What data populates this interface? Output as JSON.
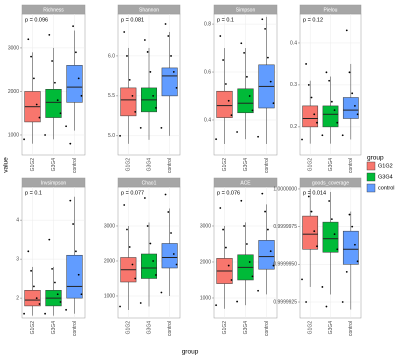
{
  "chart_data": {
    "type": "box",
    "x_label": "group",
    "y_label": "value",
    "categories": [
      "G1G2",
      "G3G4",
      "control"
    ],
    "legend": {
      "title": "group",
      "position": "right"
    },
    "series": [
      {
        "name": "G1G2",
        "color": "#f8766d"
      },
      {
        "name": "G3G4",
        "color": "#00ba38"
      },
      {
        "name": "control",
        "color": "#619cff"
      }
    ],
    "grid": true,
    "panels": [
      {
        "title": "Richness",
        "annotation": "p = 0.096",
        "ylim": [
          540,
          3780
        ],
        "yticks": [
          1000,
          2000,
          3000
        ],
        "boxes": [
          {
            "min": 800,
            "q1": 1300,
            "median": 1650,
            "q3": 2000,
            "max": 2900,
            "points": [
              900,
              1400,
              1700,
              2300,
              2800,
              3200
            ]
          },
          {
            "min": 900,
            "q1": 1400,
            "median": 1750,
            "q3": 2050,
            "max": 3000,
            "points": [
              1000,
              1500,
              1800,
              2200,
              2700,
              3300
            ]
          },
          {
            "min": 1100,
            "q1": 1750,
            "median": 2100,
            "q3": 2600,
            "max": 3400,
            "points": [
              1200,
              1900,
              2300,
              2900,
              3500,
              800
            ]
          }
        ]
      },
      {
        "title": "Shannon",
        "annotation": "p = 0.081",
        "ylim": [
          4.76,
          6.525
        ],
        "yticks": [
          {
            "value": 5,
            "label": "5.0"
          },
          5.5,
          {
            "value": 6,
            "label": "6.0"
          }
        ],
        "boxes": [
          {
            "min": 4.9,
            "q1": 5.25,
            "median": 5.45,
            "q3": 5.6,
            "max": 6.1,
            "points": [
              5.0,
              5.3,
              5.5,
              5.7,
              6.0,
              6.3
            ]
          },
          {
            "min": 4.95,
            "q1": 5.3,
            "median": 5.45,
            "q3": 5.6,
            "max": 6.1,
            "points": [
              5.1,
              5.35,
              5.5,
              5.8,
              6.05,
              6.2
            ]
          },
          {
            "min": 5.0,
            "q1": 5.5,
            "median": 5.75,
            "q3": 5.85,
            "max": 6.3,
            "points": [
              5.1,
              5.6,
              5.8,
              6.0,
              6.25,
              6.4
            ]
          }
        ]
      },
      {
        "title": "Simpson",
        "annotation": "p = 0.1",
        "ylim": [
          0.254,
          0.842
        ],
        "yticks": [
          0.4,
          0.6,
          0.8
        ],
        "boxes": [
          {
            "min": 0.3,
            "q1": 0.41,
            "median": 0.46,
            "q3": 0.52,
            "max": 0.7,
            "points": [
              0.32,
              0.42,
              0.48,
              0.55,
              0.65,
              0.75
            ]
          },
          {
            "min": 0.32,
            "q1": 0.43,
            "median": 0.47,
            "q3": 0.53,
            "max": 0.7,
            "points": [
              0.35,
              0.44,
              0.5,
              0.58,
              0.68,
              0.72
            ]
          },
          {
            "min": 0.3,
            "q1": 0.45,
            "median": 0.54,
            "q3": 0.63,
            "max": 0.83,
            "points": [
              0.33,
              0.47,
              0.56,
              0.66,
              0.78,
              0.82
            ]
          }
        ]
      },
      {
        "title": "Pielou",
        "annotation": "p = 0.12",
        "ylim": [
          0.133,
          0.469
        ],
        "yticks": [
          0.2,
          0.3,
          0.4
        ],
        "boxes": [
          {
            "min": 0.16,
            "q1": 0.2,
            "median": 0.22,
            "q3": 0.25,
            "max": 0.31,
            "points": [
              0.17,
              0.21,
              0.23,
              0.27,
              0.3,
              0.35
            ]
          },
          {
            "min": 0.16,
            "q1": 0.2,
            "median": 0.23,
            "q3": 0.25,
            "max": 0.32,
            "points": [
              0.18,
              0.21,
              0.24,
              0.26,
              0.31,
              0.33
            ]
          },
          {
            "min": 0.17,
            "q1": 0.22,
            "median": 0.24,
            "q3": 0.27,
            "max": 0.35,
            "points": [
              0.18,
              0.23,
              0.25,
              0.28,
              0.33,
              0.43
            ]
          }
        ]
      },
      {
        "title": "Invsimpson",
        "annotation": "p = 0.1",
        "ylim": [
          1.49,
          4.85
        ],
        "yticks": [
          2,
          3,
          4
        ],
        "boxes": [
          {
            "min": 1.55,
            "q1": 1.8,
            "median": 1.95,
            "q3": 2.2,
            "max": 2.8,
            "points": [
              1.6,
              1.85,
              2.0,
              2.3,
              2.7,
              3.2
            ]
          },
          {
            "min": 1.55,
            "q1": 1.8,
            "median": 2.0,
            "q3": 2.2,
            "max": 2.8,
            "points": [
              1.6,
              1.9,
              2.1,
              2.4,
              2.75,
              3.5
            ]
          },
          {
            "min": 1.6,
            "q1": 2.0,
            "median": 2.3,
            "q3": 3.1,
            "max": 4.6,
            "points": [
              1.7,
              2.1,
              2.6,
              3.2,
              3.9,
              4.5
            ]
          }
        ]
      },
      {
        "title": "Chao1",
        "annotation": "p = 0.077",
        "ylim": [
          371,
          4114
        ],
        "yticks": [
          1000,
          2000,
          3000
        ],
        "boxes": [
          {
            "min": 600,
            "q1": 1400,
            "median": 1750,
            "q3": 2100,
            "max": 3000,
            "points": [
              700,
              1500,
              1900,
              2400,
              2900,
              3600
            ]
          },
          {
            "min": 700,
            "q1": 1500,
            "median": 1800,
            "q3": 2200,
            "max": 3100,
            "points": [
              800,
              1600,
              2000,
              2500,
              3000,
              3800
            ]
          },
          {
            "min": 1000,
            "q1": 1800,
            "median": 2100,
            "q3": 2500,
            "max": 3500,
            "points": [
              1100,
              1900,
              2200,
              2800,
              3400,
              3900
            ]
          }
        ]
      },
      {
        "title": "ACE",
        "annotation": "p = 0.076",
        "ylim": [
          444,
          4083
        ],
        "yticks": [
          1000,
          2000,
          3000
        ],
        "boxes": [
          {
            "min": 700,
            "q1": 1400,
            "median": 1750,
            "q3": 2100,
            "max": 3000,
            "points": [
              800,
              1500,
              1900,
              2400,
              2900,
              3500
            ]
          },
          {
            "min": 800,
            "q1": 1500,
            "median": 1850,
            "q3": 2200,
            "max": 3100,
            "points": [
              900,
              1600,
              2000,
              2500,
              3000,
              3700
            ]
          },
          {
            "min": 1100,
            "q1": 1800,
            "median": 2150,
            "q3": 2600,
            "max": 3600,
            "points": [
              1200,
              1900,
              2300,
              2900,
              3400,
              3900
            ]
          }
        ]
      },
      {
        "title": "goods_coverage",
        "annotation": "p = 0.014",
        "ylim": [
          0.99999144,
          1.00000013
        ],
        "yticks": [
          0.9999925,
          {
            "value": 0.999995,
            "label": "0.9999950"
          },
          0.9999975,
          {
            "value": 1,
            "label": "1.0000000"
          }
        ],
        "boxes": [
          {
            "min": 0.9999935,
            "q1": 0.999996,
            "median": 0.999997,
            "q3": 0.9999982,
            "max": 1.0,
            "points": [
              0.999994,
              0.9999962,
              0.9999972,
              0.9999985,
              0.9999995,
              0.9999925
            ]
          },
          {
            "min": 0.999993,
            "q1": 0.9999958,
            "median": 0.9999967,
            "q3": 0.9999978,
            "max": 0.9999998,
            "points": [
              0.9999935,
              0.999996,
              0.999997,
              0.999998,
              0.9999992,
              0.9999922
            ]
          },
          {
            "min": 0.999992,
            "q1": 0.999995,
            "median": 0.999996,
            "q3": 0.9999972,
            "max": 0.9999985,
            "points": [
              0.9999925,
              0.9999952,
              0.9999963,
              0.9999975,
              0.9999983,
              0.9999945
            ]
          }
        ]
      }
    ]
  }
}
